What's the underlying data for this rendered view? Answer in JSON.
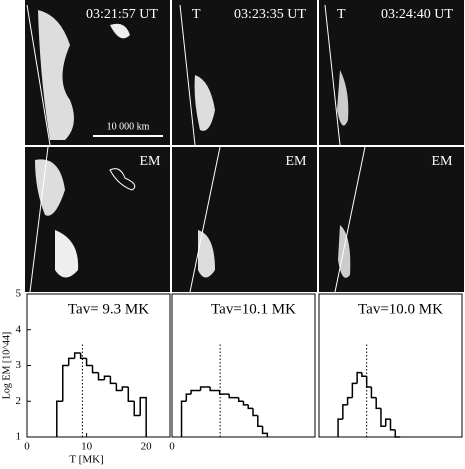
{
  "images": {
    "timestamps": [
      "03:21:57 UT",
      "03:23:35 UT",
      "03:24:40 UT"
    ],
    "t_labels": [
      "T",
      "T"
    ],
    "em_labels": [
      "EM",
      "EM",
      "EM"
    ],
    "scale_bar": "10 000 km"
  },
  "chart_data": [
    {
      "type": "histogram",
      "annotation": "Tav= 9.3 MK",
      "mean": 9.3,
      "ylabel": "Log EM [10^44]",
      "xlabel": "T [MK]",
      "bins": [
        5,
        6,
        7,
        8,
        9,
        10,
        11,
        12,
        13,
        14,
        15,
        16,
        17,
        18,
        19,
        20
      ],
      "values": [
        2.0,
        3.0,
        3.2,
        3.35,
        3.2,
        3.0,
        2.8,
        2.6,
        2.7,
        2.5,
        2.3,
        2.4,
        2.0,
        1.6,
        2.1
      ],
      "xlim": [
        0,
        24
      ],
      "ylim": [
        1,
        5
      ],
      "xticks": [
        0,
        10,
        20
      ],
      "yticks": [
        1,
        2,
        3,
        4,
        5
      ]
    },
    {
      "type": "histogram",
      "annotation": "Tav=10.1 MK",
      "mean": 10.1,
      "bins": [
        2,
        3,
        4,
        5,
        6,
        7,
        8,
        9,
        10,
        11,
        12,
        13,
        14,
        15,
        16,
        17,
        18,
        19,
        20
      ],
      "values": [
        2.0,
        2.2,
        2.3,
        2.3,
        2.4,
        2.4,
        2.3,
        2.3,
        2.2,
        2.2,
        2.1,
        2.1,
        2.0,
        1.9,
        1.8,
        1.6,
        1.3,
        1.1
      ],
      "xlim": [
        0,
        30
      ],
      "ylim": [
        1,
        5
      ],
      "xticks": [
        0
      ]
    },
    {
      "type": "histogram",
      "annotation": "Tav=10.0 MK",
      "mean": 10.0,
      "bins": [
        4,
        5,
        6,
        7,
        8,
        9,
        10,
        11,
        12,
        13,
        14,
        15,
        16,
        17
      ],
      "values": [
        1.5,
        1.9,
        2.1,
        2.5,
        2.8,
        2.7,
        2.4,
        2.1,
        1.8,
        1.3,
        1.5,
        1.2,
        1.0
      ],
      "xlim": [
        0,
        30
      ],
      "ylim": [
        1,
        5
      ],
      "xticks": []
    }
  ]
}
